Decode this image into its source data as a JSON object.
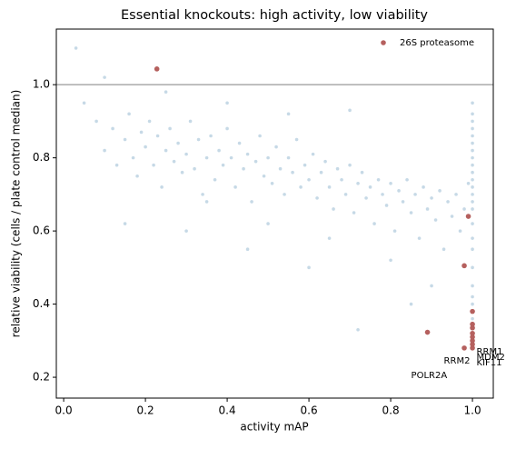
{
  "chart_data": {
    "type": "scatter",
    "title": "Essential knockouts: high activity, low viability",
    "x_label": "activity mAP",
    "y_label": "relative viability (cells / plate control median)",
    "xlim": [
      -0.018,
      1.051
    ],
    "ylim": [
      0.143,
      1.152
    ],
    "xticks": [
      {
        "value": 0,
        "label": "0.0"
      },
      0.2,
      0.4,
      0.6,
      0.8,
      {
        "value": 1,
        "label": "1.0"
      }
    ],
    "yticks": [
      0.2,
      0.4,
      0.6,
      0.8,
      {
        "value": 1,
        "label": "1.0"
      }
    ],
    "hline": 1.0,
    "legend": "upper right",
    "series": [
      {
        "color": "#5b93b8",
        "x": [
          0.03,
          0.05,
          0.08,
          0.1,
          0.12,
          0.13,
          0.15,
          0.16,
          0.17,
          0.18,
          0.19,
          0.2,
          0.21,
          0.22,
          0.23,
          0.24,
          0.25,
          0.26,
          0.27,
          0.28,
          0.29,
          0.3,
          0.31,
          0.32,
          0.33,
          0.34,
          0.35,
          0.36,
          0.37,
          0.38,
          0.39,
          0.4,
          0.41,
          0.42,
          0.43,
          0.44,
          0.45,
          0.46,
          0.47,
          0.48,
          0.49,
          0.5,
          0.51,
          0.52,
          0.53,
          0.54,
          0.55,
          0.56,
          0.57,
          0.58,
          0.59,
          0.6,
          0.61,
          0.62,
          0.63,
          0.64,
          0.65,
          0.66,
          0.67,
          0.68,
          0.69,
          0.7,
          0.71,
          0.72,
          0.73,
          0.74,
          0.75,
          0.76,
          0.77,
          0.78,
          0.79,
          0.8,
          0.81,
          0.82,
          0.83,
          0.84,
          0.85,
          0.86,
          0.87,
          0.88,
          0.89,
          0.9,
          0.91,
          0.92,
          0.93,
          0.94,
          0.95,
          0.96,
          0.97,
          0.98,
          0.99,
          0.15,
          0.3,
          0.45,
          0.6,
          0.72,
          0.85,
          0.1,
          0.25,
          0.4,
          0.55,
          0.7,
          0.35,
          0.5,
          0.65,
          0.8,
          0.9,
          1,
          1,
          1,
          1,
          1,
          1,
          1,
          1,
          1,
          1,
          1,
          1,
          1,
          1,
          1,
          1,
          1,
          1,
          1,
          1,
          1,
          1,
          1
        ],
        "values": [
          1.1,
          0.95,
          0.9,
          0.82,
          0.88,
          0.78,
          0.85,
          0.92,
          0.8,
          0.75,
          0.87,
          0.83,
          0.9,
          0.78,
          0.86,
          0.72,
          0.82,
          0.88,
          0.79,
          0.84,
          0.76,
          0.81,
          0.9,
          0.77,
          0.85,
          0.7,
          0.8,
          0.86,
          0.74,
          0.82,
          0.78,
          0.88,
          0.8,
          0.72,
          0.84,
          0.77,
          0.81,
          0.68,
          0.79,
          0.86,
          0.75,
          0.8,
          0.73,
          0.83,
          0.77,
          0.7,
          0.8,
          0.76,
          0.85,
          0.72,
          0.78,
          0.74,
          0.81,
          0.69,
          0.76,
          0.79,
          0.72,
          0.66,
          0.77,
          0.74,
          0.7,
          0.78,
          0.65,
          0.73,
          0.76,
          0.69,
          0.72,
          0.62,
          0.74,
          0.7,
          0.67,
          0.73,
          0.6,
          0.71,
          0.68,
          0.74,
          0.65,
          0.7,
          0.58,
          0.72,
          0.66,
          0.69,
          0.63,
          0.71,
          0.55,
          0.68,
          0.64,
          0.7,
          0.6,
          0.66,
          0.73,
          0.62,
          0.6,
          0.55,
          0.5,
          0.33,
          0.4,
          1.02,
          0.98,
          0.95,
          0.92,
          0.93,
          0.68,
          0.62,
          0.58,
          0.52,
          0.45,
          0.95,
          0.92,
          0.9,
          0.88,
          0.86,
          0.84,
          0.82,
          0.8,
          0.78,
          0.76,
          0.74,
          0.72,
          0.7,
          0.68,
          0.66,
          0.62,
          0.58,
          0.55,
          0.5,
          0.45,
          0.42,
          0.4,
          0.36
        ]
      },
      {
        "name": "26S proteasome",
        "color": "#b5605e",
        "x": [
          0.228,
          0.99,
          0.98,
          0.89,
          0.98,
          1,
          1,
          1,
          1,
          1,
          1,
          1,
          1
        ],
        "values": [
          1.043,
          0.64,
          0.505,
          0.323,
          0.28,
          0.38,
          0.345,
          0.335,
          0.32,
          0.31,
          0.3,
          0.29,
          0.28
        ]
      }
    ],
    "annotations": [
      {
        "text": "RRM1",
        "x": 1.01,
        "y": 0.27
      },
      {
        "text": "MDM2",
        "x": 1.01,
        "y": 0.255
      },
      {
        "text": "RRM2",
        "x": 0.93,
        "y": 0.245
      },
      {
        "text": "KIF11",
        "x": 1.01,
        "y": 0.24
      },
      {
        "text": "POLR2A",
        "x": 0.85,
        "y": 0.205
      }
    ]
  }
}
